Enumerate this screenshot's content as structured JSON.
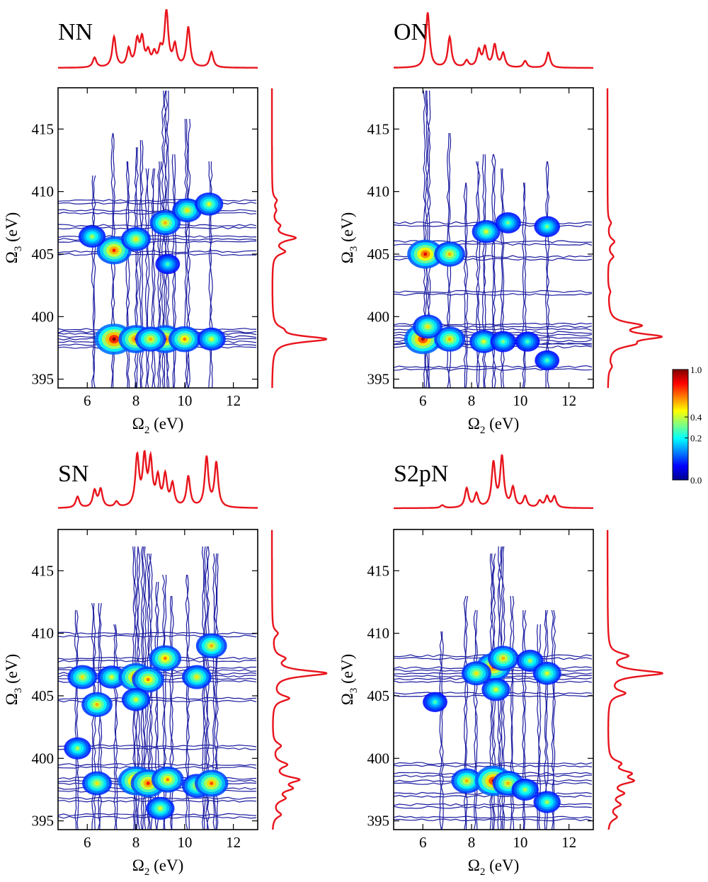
{
  "chart_data": {
    "type": "heatmap",
    "colorbar": {
      "ticks": [
        "0.0",
        "0.2",
        "0.4",
        "1.0"
      ],
      "tick_values": [
        0.0,
        0.2,
        0.4,
        1.0
      ],
      "colors": [
        "#00008f",
        "#0000ff",
        "#0080ff",
        "#00ffff",
        "#80ff80",
        "#ffff00",
        "#ff8000",
        "#ff0000",
        "#800000"
      ]
    },
    "contour_color": "#1a1aa0",
    "projection_color": "#e8141c",
    "xlabel": "Ω",
    "xlabel_sub": "2",
    "xlabel_unit": " (eV)",
    "ylabel": "Ω",
    "ylabel_sub": "3",
    "ylabel_unit": " (eV)",
    "xlim": [
      4.8,
      13.0
    ],
    "ylim": [
      394.3,
      418.3
    ],
    "xticks": [
      6,
      8,
      10,
      12
    ],
    "xtick_labels": [
      "6",
      "8",
      "10",
      "12"
    ],
    "yticks": [
      395,
      400,
      405,
      410,
      415
    ],
    "ytick_labels": [
      "395",
      "400",
      "405",
      "410",
      "415"
    ],
    "panels": [
      {
        "title": "NN",
        "x_projection": {
          "peaks": [
            [
              6.3,
              0.18
            ],
            [
              7.1,
              0.55
            ],
            [
              7.7,
              0.32
            ],
            [
              8.05,
              0.45
            ],
            [
              8.25,
              0.48
            ],
            [
              8.5,
              0.25
            ],
            [
              8.75,
              0.22
            ],
            [
              9.0,
              0.28
            ],
            [
              9.25,
              1.0
            ],
            [
              9.6,
              0.38
            ],
            [
              10.15,
              0.72
            ],
            [
              11.1,
              0.28
            ]
          ]
        },
        "y_projection": {
          "peaks": [
            [
              398.2,
              1.0
            ],
            [
              399.0,
              0.12
            ],
            [
              405.2,
              0.22
            ],
            [
              406.3,
              0.42
            ],
            [
              407.3,
              0.12
            ],
            [
              408.5,
              0.06
            ],
            [
              409.3,
              0.08
            ]
          ]
        },
        "hotspots": [
          [
            7.1,
            398.2,
            0.85
          ],
          [
            8.0,
            398.2,
            0.7
          ],
          [
            9.2,
            398.2,
            0.7
          ],
          [
            10.0,
            398.2,
            0.6
          ],
          [
            11.1,
            398.2,
            0.45
          ],
          [
            7.1,
            405.3,
            0.7
          ],
          [
            8.0,
            406.2,
            0.5
          ],
          [
            9.2,
            407.5,
            0.55
          ],
          [
            10.1,
            408.5,
            0.5
          ],
          [
            11.0,
            409.0,
            0.45
          ],
          [
            6.2,
            406.4,
            0.4
          ],
          [
            9.3,
            404.2,
            0.3
          ],
          [
            8.6,
            398.2,
            0.55
          ]
        ]
      },
      {
        "title": "ON",
        "x_projection": {
          "peaks": [
            [
              6.2,
              1.0
            ],
            [
              7.1,
              0.55
            ],
            [
              7.8,
              0.12
            ],
            [
              8.3,
              0.3
            ],
            [
              8.55,
              0.35
            ],
            [
              8.95,
              0.4
            ],
            [
              9.3,
              0.25
            ],
            [
              10.2,
              0.12
            ],
            [
              11.15,
              0.28
            ]
          ]
        },
        "y_projection": {
          "peaks": [
            [
              396.0,
              0.06
            ],
            [
              397.8,
              0.35
            ],
            [
              398.4,
              0.9
            ],
            [
              399.3,
              0.55
            ],
            [
              402.0,
              0.04
            ],
            [
              404.8,
              0.1
            ],
            [
              406.0,
              0.12
            ],
            [
              407.5,
              0.06
            ]
          ]
        },
        "hotspots": [
          [
            6.0,
            398.2,
            0.8
          ],
          [
            7.1,
            398.2,
            0.55
          ],
          [
            6.1,
            405.0,
            0.75
          ],
          [
            7.1,
            405.0,
            0.55
          ],
          [
            8.5,
            398.0,
            0.45
          ],
          [
            9.3,
            398.0,
            0.35
          ],
          [
            10.3,
            398.0,
            0.3
          ],
          [
            8.6,
            406.8,
            0.45
          ],
          [
            9.5,
            407.5,
            0.35
          ],
          [
            11.1,
            407.2,
            0.35
          ],
          [
            11.1,
            396.5,
            0.3
          ],
          [
            6.2,
            399.2,
            0.5
          ]
        ]
      },
      {
        "title": "SN",
        "x_projection": {
          "peaks": [
            [
              5.6,
              0.2
            ],
            [
              6.3,
              0.3
            ],
            [
              6.55,
              0.32
            ],
            [
              7.2,
              0.1
            ],
            [
              8.05,
              0.9
            ],
            [
              8.35,
              0.85
            ],
            [
              8.6,
              0.8
            ],
            [
              8.9,
              0.5
            ],
            [
              9.2,
              0.55
            ],
            [
              9.5,
              0.4
            ],
            [
              10.15,
              0.55
            ],
            [
              10.9,
              0.9
            ],
            [
              11.3,
              0.8
            ]
          ]
        },
        "y_projection": {
          "peaks": [
            [
              395.5,
              0.15
            ],
            [
              396.8,
              0.2
            ],
            [
              397.6,
              0.3
            ],
            [
              398.3,
              0.45
            ],
            [
              399.5,
              0.25
            ],
            [
              401.0,
              0.15
            ],
            [
              404.8,
              0.3
            ],
            [
              406.8,
              1.0
            ],
            [
              408.0,
              0.2
            ],
            [
              410.0,
              0.1
            ]
          ]
        },
        "hotspots": [
          [
            5.8,
            406.5,
            0.5
          ],
          [
            6.4,
            404.3,
            0.55
          ],
          [
            7.0,
            406.5,
            0.45
          ],
          [
            8.0,
            406.5,
            0.7
          ],
          [
            8.5,
            406.3,
            0.6
          ],
          [
            9.2,
            408.0,
            0.6
          ],
          [
            10.5,
            406.5,
            0.5
          ],
          [
            11.1,
            409.0,
            0.55
          ],
          [
            8.0,
            398.2,
            0.75
          ],
          [
            8.5,
            398.0,
            0.7
          ],
          [
            9.3,
            398.3,
            0.6
          ],
          [
            10.5,
            397.8,
            0.5
          ],
          [
            11.1,
            398.0,
            0.65
          ],
          [
            6.4,
            398.0,
            0.5
          ],
          [
            5.6,
            400.8,
            0.4
          ],
          [
            9.0,
            396.0,
            0.45
          ],
          [
            8.0,
            404.7,
            0.45
          ]
        ]
      },
      {
        "title": "S2pN",
        "x_projection": {
          "peaks": [
            [
              6.8,
              0.05
            ],
            [
              7.8,
              0.35
            ],
            [
              8.2,
              0.25
            ],
            [
              8.9,
              0.8
            ],
            [
              9.25,
              0.9
            ],
            [
              9.7,
              0.35
            ],
            [
              10.2,
              0.2
            ],
            [
              10.8,
              0.12
            ],
            [
              11.1,
              0.2
            ],
            [
              11.4,
              0.2
            ]
          ]
        },
        "y_projection": {
          "peaks": [
            [
              395.3,
              0.15
            ],
            [
              396.3,
              0.2
            ],
            [
              397.2,
              0.25
            ],
            [
              398.2,
              0.4
            ],
            [
              398.8,
              0.35
            ],
            [
              399.6,
              0.2
            ],
            [
              405.2,
              0.3
            ],
            [
              406.8,
              1.0
            ],
            [
              408.2,
              0.35
            ]
          ]
        },
        "hotspots": [
          [
            8.9,
            407.3,
            0.7
          ],
          [
            9.3,
            408.0,
            0.55
          ],
          [
            8.2,
            406.8,
            0.5
          ],
          [
            10.4,
            407.8,
            0.4
          ],
          [
            11.1,
            406.8,
            0.45
          ],
          [
            7.8,
            398.2,
            0.55
          ],
          [
            8.9,
            398.2,
            0.8
          ],
          [
            9.5,
            398.0,
            0.55
          ],
          [
            10.2,
            397.5,
            0.4
          ],
          [
            11.1,
            396.5,
            0.4
          ],
          [
            9.0,
            405.5,
            0.45
          ],
          [
            6.5,
            404.5,
            0.3
          ]
        ]
      }
    ]
  }
}
